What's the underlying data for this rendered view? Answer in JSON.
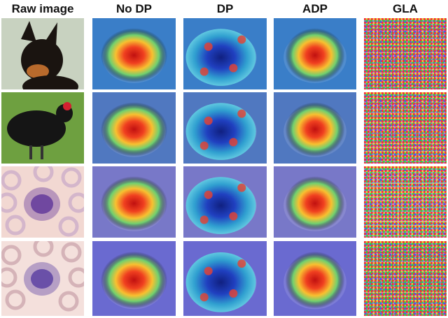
{
  "columns": [
    "Raw image",
    "No DP",
    "DP",
    "ADP",
    "GLA"
  ],
  "rows": [
    {
      "content": "dog",
      "raw_bg": "#c8d2c0",
      "subject": "#1a1410",
      "accent": "#b86a2c",
      "heat_bg": "#3a7ec8"
    },
    {
      "content": "chicken",
      "raw_bg": "#6ea040",
      "subject": "#151515",
      "accent": "#d42030",
      "heat_bg": "#5078c0"
    },
    {
      "content": "blood-cell",
      "raw_bg": "#f2d8d2",
      "subject": "#7048a0",
      "accent": "#c8a8c8",
      "heat_bg": "#7878c8"
    },
    {
      "content": "blood-cell",
      "raw_bg": "#f4e0dc",
      "subject": "#6a50a8",
      "accent": "#c8a0a8",
      "heat_bg": "#6a6ad0"
    }
  ],
  "gla_backgrounds": [
    "#7a5a8a",
    "#8a6a8a",
    "#8ab8b0",
    "#3a9a6a"
  ]
}
